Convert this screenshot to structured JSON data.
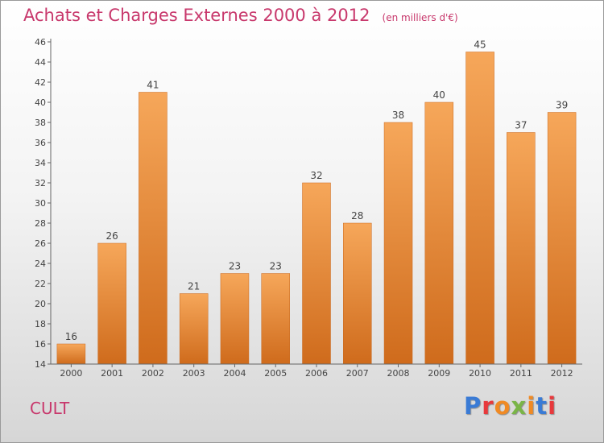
{
  "header": {
    "title": "Achats et Charges Externes 2000 à 2012",
    "subtitle": "(en milliers d'€)"
  },
  "footer": {
    "commune": "CULT",
    "brand": "Proxiti"
  },
  "brand_colors": [
    "#3a7bd5",
    "#e8393c",
    "#f08a24",
    "#7ab547",
    "#f08a24",
    "#3a7bd5",
    "#e8393c"
  ],
  "colors": {
    "bar_light": "#f6a75a",
    "bar_dark": "#cf6b1c",
    "title": "#c8386c"
  },
  "chart_data": {
    "type": "bar",
    "title": "Achats et Charges Externes 2000 à 2012",
    "subtitle": "(en milliers d'€)",
    "categories": [
      "2000",
      "2001",
      "2002",
      "2003",
      "2004",
      "2005",
      "2006",
      "2007",
      "2008",
      "2009",
      "2010",
      "2011",
      "2012"
    ],
    "values": [
      16,
      26,
      41,
      21,
      23,
      23,
      32,
      28,
      38,
      40,
      45,
      37,
      39
    ],
    "ylim": [
      14,
      46
    ],
    "yticks": [
      14,
      16,
      18,
      20,
      22,
      24,
      26,
      28,
      30,
      32,
      34,
      36,
      38,
      40,
      42,
      44,
      46
    ],
    "grid": false,
    "data_labels": true,
    "legend": "none"
  }
}
